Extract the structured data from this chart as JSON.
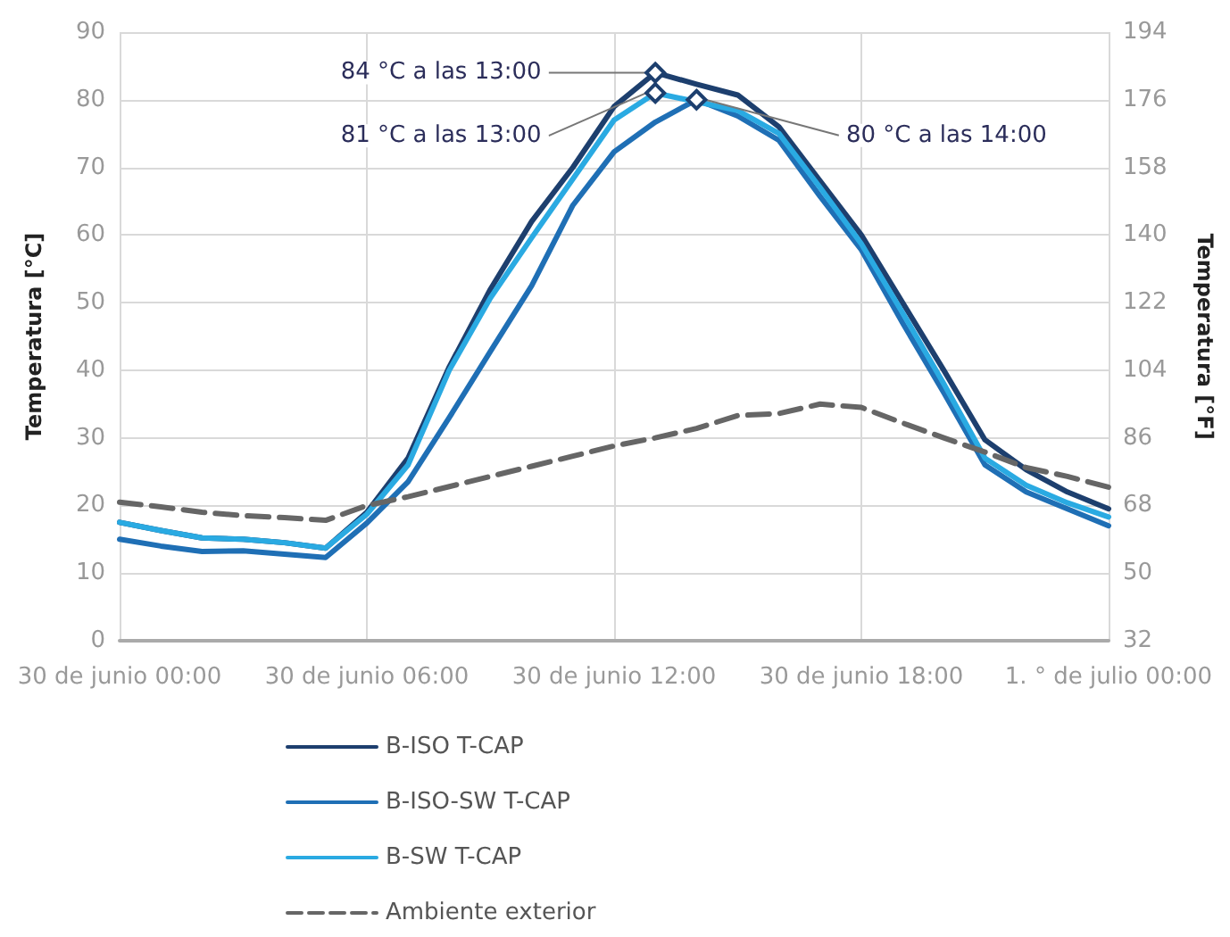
{
  "chart_data": {
    "type": "line",
    "categories": [
      "30 de junio 00:00",
      null,
      null,
      null,
      null,
      null,
      "30 de junio 06:00",
      null,
      null,
      null,
      null,
      null,
      "30 de junio 12:00",
      null,
      null,
      null,
      null,
      null,
      "30 de junio 18:00",
      null,
      null,
      null,
      null,
      null,
      "1. ° de julio 00:00"
    ],
    "series": [
      {
        "name": "B-ISO T-CAP",
        "color": "#1d3f6e",
        "values": [
          17.5,
          16.3,
          15.2,
          15,
          14.5,
          13.7,
          19,
          27,
          40.5,
          52,
          62,
          70,
          79,
          84,
          82.3,
          80.7,
          76,
          68,
          60,
          50,
          40,
          29.7,
          25.3,
          22,
          19.5
        ],
        "value_labels": [
          null,
          null,
          null,
          null,
          null,
          null,
          null,
          null,
          null,
          null,
          null,
          null,
          null,
          "84 °C a las 13:00",
          null,
          null,
          null,
          null,
          null,
          null,
          null,
          null,
          null,
          null,
          null
        ]
      },
      {
        "name": "B-ISO-SW T-CAP",
        "color": "#1f6fb5",
        "values": [
          15,
          14,
          13.2,
          13.3,
          12.8,
          12.3,
          17.4,
          23.5,
          33,
          42.8,
          52.5,
          64.4,
          72.3,
          76.7,
          80,
          77.6,
          74,
          65.7,
          57.8,
          47,
          36.7,
          26,
          22,
          19.5,
          17
        ],
        "value_labels": [
          null,
          null,
          null,
          null,
          null,
          null,
          null,
          null,
          null,
          null,
          null,
          null,
          null,
          null,
          "80 °C a las 14:00",
          null,
          null,
          null,
          null,
          null,
          null,
          null,
          null,
          null,
          null
        ]
      },
      {
        "name": "B-SW T-CAP",
        "color": "#2aaae2",
        "values": [
          17.5,
          16.3,
          15.2,
          15,
          14.5,
          13.7,
          18.7,
          26,
          40,
          50.7,
          59.6,
          68.3,
          77,
          81,
          79.7,
          78.4,
          75,
          67,
          58.7,
          48.5,
          38,
          27,
          23,
          20.4,
          18.3
        ],
        "value_labels": [
          null,
          null,
          null,
          null,
          null,
          null,
          null,
          null,
          null,
          null,
          null,
          null,
          null,
          "81 °C a las 13:00",
          null,
          null,
          null,
          null,
          null,
          null,
          null,
          null,
          null,
          null,
          null
        ]
      },
      {
        "name": "Ambiente exterior",
        "color": "#666666",
        "line_style": "dashed",
        "values": [
          20.5,
          19.8,
          19,
          18.5,
          18.2,
          17.8,
          20,
          21.3,
          22.8,
          24.3,
          25.8,
          27.3,
          28.8,
          30,
          31.4,
          33.3,
          33.6,
          35,
          34.5,
          32.2,
          30,
          27.9,
          25.6,
          24.3,
          22.7
        ]
      }
    ],
    "ylim": [
      0,
      90
    ],
    "yticks": [
      0,
      10,
      20,
      30,
      40,
      50,
      60,
      70,
      80,
      90
    ],
    "y2lim": [
      32,
      194
    ],
    "y2ticks": [
      32,
      50,
      68,
      86,
      104,
      122,
      140,
      158,
      176,
      194
    ],
    "ylabel": "Temperatura [°C]",
    "y2label": "Temperatura [°F]",
    "grid": true,
    "legend": "bottom",
    "line_style": "solid",
    "marker": "none"
  }
}
